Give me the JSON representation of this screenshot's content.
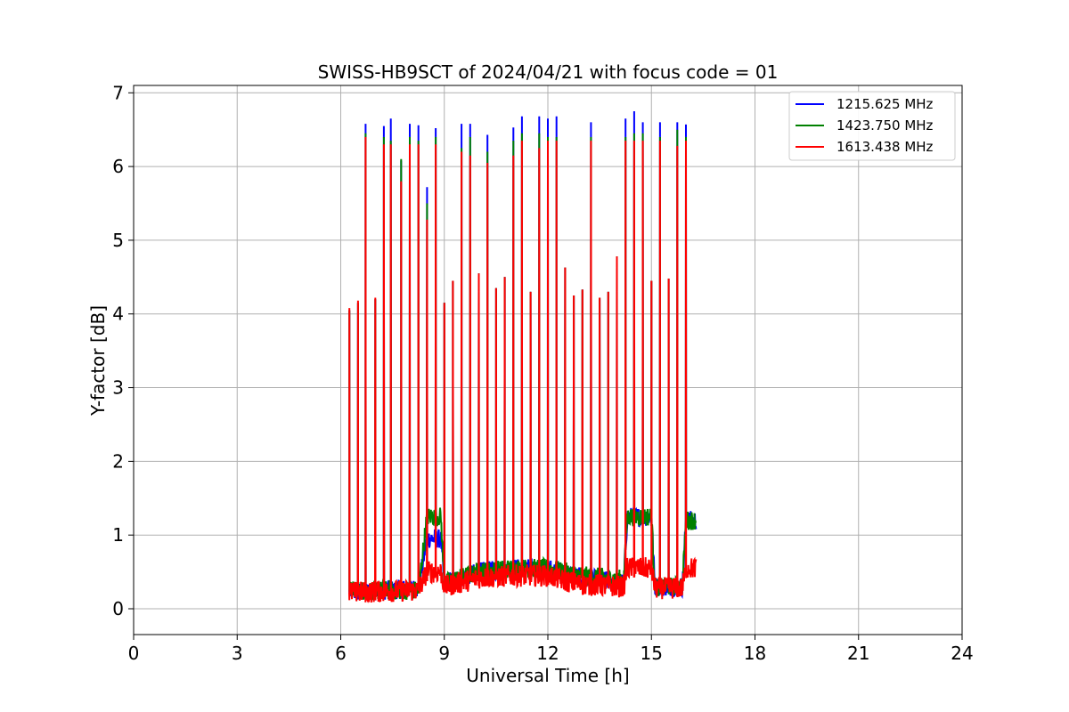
{
  "chart_data": {
    "type": "line",
    "title": "SWISS-HB9SCT of 2024/04/21 with focus code = 01",
    "xlabel": "Universal Time [h]",
    "ylabel": "Y-factor [dB]",
    "xlim": [
      0,
      24
    ],
    "ylim": [
      -0.35,
      7.1
    ],
    "xticks": [
      0,
      3,
      6,
      9,
      12,
      15,
      18,
      21,
      24
    ],
    "yticks": [
      0,
      1,
      2,
      3,
      4,
      5,
      6,
      7
    ],
    "grid": true,
    "legend_position": "top-right",
    "baseline": {
      "x": [
        6.25,
        8.25,
        8.5,
        8.9,
        9.0,
        10.0,
        11.0,
        12.0,
        12.5,
        13.0,
        14.2,
        14.3,
        15.0,
        15.1,
        15.9,
        16.0,
        16.3
      ],
      "1215.625 MHz": [
        0.22,
        0.28,
        0.95,
        0.95,
        0.35,
        0.5,
        0.55,
        0.55,
        0.48,
        0.42,
        0.35,
        1.25,
        1.25,
        0.3,
        0.3,
        1.2,
        1.2
      ],
      "1423.750 MHz": [
        0.25,
        0.25,
        1.25,
        1.25,
        0.35,
        0.5,
        0.55,
        0.55,
        0.5,
        0.45,
        0.4,
        1.25,
        1.25,
        0.3,
        0.3,
        1.2,
        1.2
      ],
      "1613.438 MHz": [
        0.22,
        0.25,
        0.5,
        0.5,
        0.3,
        0.42,
        0.45,
        0.45,
        0.38,
        0.33,
        0.3,
        0.55,
        0.55,
        0.28,
        0.28,
        0.55,
        0.55
      ]
    },
    "spikes": [
      {
        "x": 6.25,
        "values": [
          4.05,
          4.05,
          4.08
        ]
      },
      {
        "x": 6.5,
        "values": [
          4.15,
          4.15,
          4.18
        ]
      },
      {
        "x": 6.72,
        "values": [
          6.58,
          6.45,
          6.4
        ]
      },
      {
        "x": 7.0,
        "values": [
          4.2,
          4.2,
          4.22
        ]
      },
      {
        "x": 7.25,
        "values": [
          6.55,
          6.4,
          6.3
        ]
      },
      {
        "x": 7.45,
        "values": [
          6.65,
          6.35,
          6.3
        ]
      },
      {
        "x": 7.75,
        "values": [
          6.08,
          6.1,
          5.8
        ]
      },
      {
        "x": 8.0,
        "values": [
          6.58,
          6.4,
          6.3
        ]
      },
      {
        "x": 8.25,
        "values": [
          6.56,
          6.35,
          6.3
        ]
      },
      {
        "x": 8.5,
        "values": [
          5.72,
          5.5,
          5.28
        ]
      },
      {
        "x": 8.75,
        "values": [
          6.52,
          6.4,
          6.3
        ]
      },
      {
        "x": 9.0,
        "values": [
          4.15,
          4.15,
          4.15
        ]
      },
      {
        "x": 9.25,
        "values": [
          4.45,
          4.45,
          4.45
        ]
      },
      {
        "x": 9.5,
        "values": [
          6.58,
          6.25,
          6.2
        ]
      },
      {
        "x": 9.75,
        "values": [
          6.58,
          6.4,
          6.15
        ]
      },
      {
        "x": 10.0,
        "values": [
          4.55,
          4.55,
          4.55
        ]
      },
      {
        "x": 10.25,
        "values": [
          6.43,
          6.2,
          6.05
        ]
      },
      {
        "x": 10.5,
        "values": [
          4.35,
          4.35,
          4.35
        ]
      },
      {
        "x": 10.75,
        "values": [
          4.5,
          4.5,
          4.5
        ]
      },
      {
        "x": 11.0,
        "values": [
          6.53,
          6.35,
          6.15
        ]
      },
      {
        "x": 11.25,
        "values": [
          6.68,
          6.45,
          6.35
        ]
      },
      {
        "x": 11.5,
        "values": [
          4.3,
          4.3,
          4.3
        ]
      },
      {
        "x": 11.75,
        "values": [
          6.68,
          6.45,
          6.25
        ]
      },
      {
        "x": 12.0,
        "values": [
          6.65,
          6.4,
          6.35
        ]
      },
      {
        "x": 12.25,
        "values": [
          6.68,
          6.4,
          6.35
        ]
      },
      {
        "x": 12.5,
        "values": [
          4.63,
          4.63,
          4.63
        ]
      },
      {
        "x": 12.75,
        "values": [
          4.25,
          4.25,
          4.25
        ]
      },
      {
        "x": 13.0,
        "values": [
          4.33,
          4.33,
          4.33
        ]
      },
      {
        "x": 13.25,
        "values": [
          6.6,
          6.4,
          6.35
        ]
      },
      {
        "x": 13.5,
        "values": [
          4.22,
          4.22,
          4.22
        ]
      },
      {
        "x": 13.75,
        "values": [
          4.3,
          4.3,
          4.3
        ]
      },
      {
        "x": 14.0,
        "values": [
          4.78,
          4.78,
          4.78
        ]
      },
      {
        "x": 14.25,
        "values": [
          6.65,
          6.4,
          6.35
        ]
      },
      {
        "x": 14.5,
        "values": [
          6.75,
          6.45,
          6.35
        ]
      },
      {
        "x": 14.75,
        "values": [
          6.6,
          6.45,
          6.35
        ]
      },
      {
        "x": 15.0,
        "values": [
          4.45,
          4.45,
          4.45
        ]
      },
      {
        "x": 15.25,
        "values": [
          6.6,
          6.4,
          6.35
        ]
      },
      {
        "x": 15.5,
        "values": [
          4.48,
          4.48,
          4.48
        ]
      },
      {
        "x": 15.75,
        "values": [
          6.6,
          6.5,
          6.28
        ]
      },
      {
        "x": 16.0,
        "values": [
          6.57,
          6.4,
          6.35
        ]
      }
    ],
    "series": [
      {
        "name": "1215.625 MHz",
        "color": "#0000ff"
      },
      {
        "name": "1423.750 MHz",
        "color": "#008000"
      },
      {
        "name": "1613.438 MHz",
        "color": "#ff0000"
      }
    ]
  }
}
